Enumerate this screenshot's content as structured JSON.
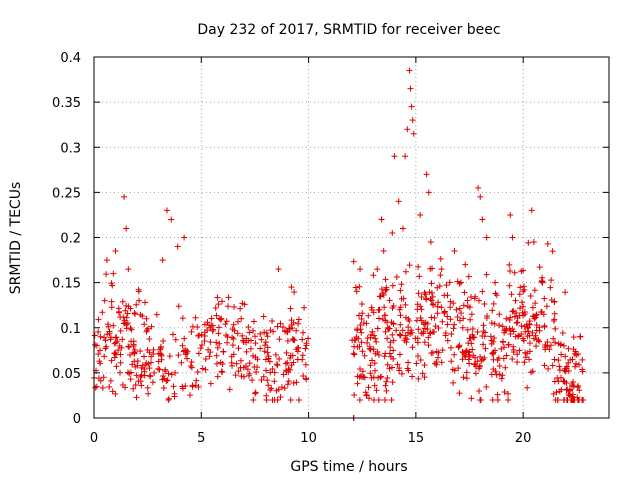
{
  "chart_data": {
    "type": "scatter",
    "title": "Day 232 of 2017, SRMTID for receiver beec",
    "xlabel": "GPS time / hours",
    "ylabel": "SRMTID / TECUs",
    "xlim": [
      0,
      24
    ],
    "ylim": [
      0,
      0.4
    ],
    "grid": true,
    "marker": "plus",
    "color": "#e00000",
    "x_ticks": [
      {
        "value": 0,
        "label": "0"
      },
      {
        "value": 5,
        "label": "5"
      },
      {
        "value": 10,
        "label": "10"
      },
      {
        "value": 15,
        "label": "15"
      },
      {
        "value": 20,
        "label": "20"
      }
    ],
    "y_ticks": [
      {
        "value": 0,
        "label": "0"
      },
      {
        "value": 0.05,
        "label": "0.05"
      },
      {
        "value": 0.1,
        "label": "0.1"
      },
      {
        "value": 0.15,
        "label": "0.15"
      },
      {
        "value": 0.2,
        "label": "0.2"
      },
      {
        "value": 0.25,
        "label": "0.25"
      },
      {
        "value": 0.3,
        "label": "0.3"
      },
      {
        "value": 0.35,
        "label": "0.35"
      },
      {
        "value": 0.4,
        "label": "0.4"
      }
    ],
    "segments": [
      {
        "start": 0.0,
        "end": 10.0,
        "mean": 0.075,
        "spread": 0.028,
        "count": 430
      },
      {
        "start": 12.1,
        "end": 12.1,
        "mean": 0.0,
        "spread": 0.0,
        "count": 3
      },
      {
        "start": 12.0,
        "end": 22.8,
        "mean": 0.095,
        "spread": 0.035,
        "count": 620
      }
    ],
    "peaks": [
      {
        "x": 0.3,
        "y": 0.09
      },
      {
        "x": 0.5,
        "y": 0.13
      },
      {
        "x": 0.6,
        "y": 0.175
      },
      {
        "x": 0.9,
        "y": 0.16
      },
      {
        "x": 1.0,
        "y": 0.185
      },
      {
        "x": 1.4,
        "y": 0.245
      },
      {
        "x": 1.5,
        "y": 0.21
      },
      {
        "x": 1.6,
        "y": 0.165
      },
      {
        "x": 2.1,
        "y": 0.13
      },
      {
        "x": 3.2,
        "y": 0.175
      },
      {
        "x": 3.4,
        "y": 0.23
      },
      {
        "x": 3.6,
        "y": 0.22
      },
      {
        "x": 3.9,
        "y": 0.19
      },
      {
        "x": 4.2,
        "y": 0.2
      },
      {
        "x": 8.6,
        "y": 0.165
      },
      {
        "x": 9.2,
        "y": 0.145
      },
      {
        "x": 12.4,
        "y": 0.165
      },
      {
        "x": 13.2,
        "y": 0.165
      },
      {
        "x": 13.4,
        "y": 0.22
      },
      {
        "x": 13.5,
        "y": 0.185
      },
      {
        "x": 13.9,
        "y": 0.205
      },
      {
        "x": 14.0,
        "y": 0.29
      },
      {
        "x": 14.2,
        "y": 0.24
      },
      {
        "x": 14.4,
        "y": 0.21
      },
      {
        "x": 14.5,
        "y": 0.29
      },
      {
        "x": 14.6,
        "y": 0.32
      },
      {
        "x": 14.7,
        "y": 0.385
      },
      {
        "x": 14.75,
        "y": 0.365
      },
      {
        "x": 14.8,
        "y": 0.345
      },
      {
        "x": 14.85,
        "y": 0.33
      },
      {
        "x": 14.9,
        "y": 0.315
      },
      {
        "x": 15.2,
        "y": 0.225
      },
      {
        "x": 15.5,
        "y": 0.27
      },
      {
        "x": 15.6,
        "y": 0.25
      },
      {
        "x": 15.7,
        "y": 0.195
      },
      {
        "x": 16.2,
        "y": 0.165
      },
      {
        "x": 16.8,
        "y": 0.185
      },
      {
        "x": 17.3,
        "y": 0.17
      },
      {
        "x": 17.9,
        "y": 0.255
      },
      {
        "x": 18.0,
        "y": 0.245
      },
      {
        "x": 18.1,
        "y": 0.22
      },
      {
        "x": 18.3,
        "y": 0.2
      },
      {
        "x": 19.4,
        "y": 0.225
      },
      {
        "x": 19.5,
        "y": 0.2
      },
      {
        "x": 20.4,
        "y": 0.23
      },
      {
        "x": 20.5,
        "y": 0.195
      },
      {
        "x": 20.9,
        "y": 0.15
      },
      {
        "x": 21.9,
        "y": 0.08
      },
      {
        "x": 22.3,
        "y": 0.065
      }
    ]
  }
}
